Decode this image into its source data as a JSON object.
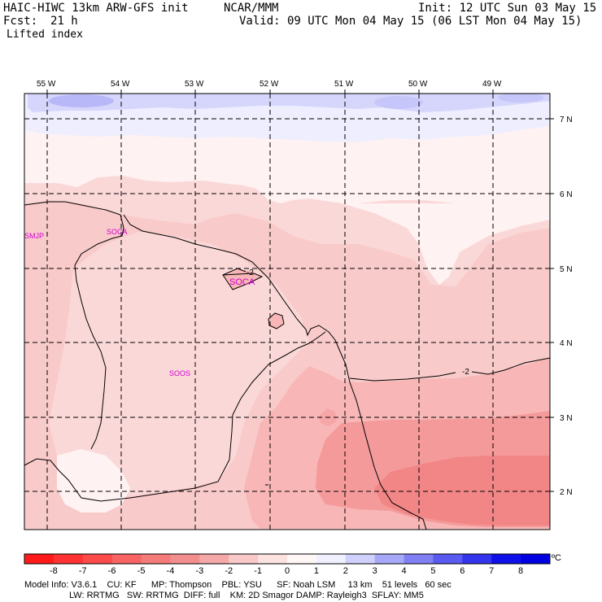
{
  "header": {
    "model": "HAIC-HIWC 13km ARW-GFS init",
    "org": "NCAR/MMM",
    "init": "Init: 12 UTC Sun 03 May 15",
    "fcst_label": "Fcst:",
    "fcst_value": "21 h",
    "valid": "Valid: 09 UTC Mon 04 May 15 (06 LST Mon 04 May 15)",
    "field": "Lifted index"
  },
  "map": {
    "lon_labels": [
      "55 W",
      "54 W",
      "53 W",
      "52 W",
      "51 W",
      "50 W",
      "49 W"
    ],
    "lat_labels": [
      "7 N",
      "6 N",
      "5 N",
      "4 N",
      "3 N",
      "2 N"
    ],
    "stations": [
      "SMJP",
      "SOCA",
      "SOCA",
      "SOOS"
    ],
    "contour_labels": [
      "-2",
      "-2"
    ],
    "fill_colors": {
      "very_light_blue": "#eeeefe",
      "light_blue": "#d6d6fc",
      "blue": "#b8b8f8",
      "near_white_pink": "#fff2f2",
      "light_pink": "#fbd8d8",
      "pink": "#f9caca",
      "mid_pink": "#f8b6b6",
      "salmon": "#f59a9a",
      "deep_salmon": "#f28686"
    }
  },
  "colorbar": {
    "labels": [
      "-8",
      "-7",
      "-6",
      "-5",
      "-4",
      "-3",
      "-2",
      "-1",
      "0",
      "1",
      "2",
      "3",
      "4",
      "5",
      "6",
      "7",
      "8"
    ],
    "unit": "ºC",
    "colors": [
      "#ff1a1a",
      "#fe3232",
      "#fb4a4a",
      "#f86464",
      "#f57a7a",
      "#f38e8e",
      "#f5a8a8",
      "#f9c8c8",
      "#fde2e2",
      "#fff6f6",
      "#f0f0ff",
      "#d0d0fc",
      "#a8a8f8",
      "#8080f4",
      "#5a5af0",
      "#3434ec",
      "#1010e8",
      "#0000e0"
    ]
  },
  "footer": {
    "line1": "Model Info: V3.6.1    CU: KF      MP: Thompson    PBL: YSU      SF: Noah LSM     13 km    51 levels   60 sec",
    "line2": "                  LW: RRTMG   SW: RRTMG  DIFF: full    KM: 2D Smagor DAMP: Rayleigh3  SFLAY: MM5"
  }
}
